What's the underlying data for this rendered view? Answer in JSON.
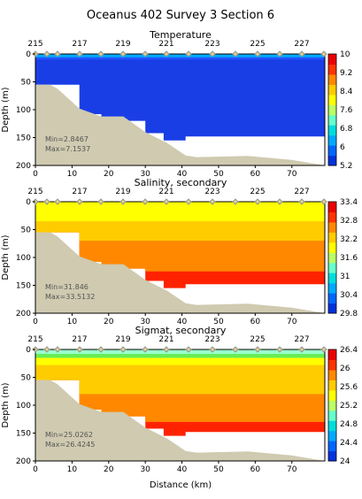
{
  "title": "Oceanus 402 Survey 3 Section 6",
  "xlabel": "Distance (km)",
  "ylabel": "Depth (m)",
  "station_labels": [
    "215",
    "217",
    "219",
    "221",
    "223",
    "225",
    "227"
  ],
  "x_tick_labels": [
    "0",
    "10",
    "20",
    "30",
    "40",
    "50",
    "60",
    "70"
  ],
  "y_tick_labels": [
    "0",
    "50",
    "100",
    "150",
    "200"
  ],
  "chart_data": [
    {
      "type": "heatmap",
      "title": "Temperature",
      "xlim": [
        0,
        79
      ],
      "ylim": [
        200,
        0
      ],
      "stats": {
        "min_label": "Min=2.8467",
        "max_label": "Max=7.1537"
      },
      "colorbar": {
        "tick_labels": [
          "10",
          "9.2",
          "8.4",
          "7.6",
          "6.8",
          "6",
          "5.2"
        ],
        "colors": [
          "#0033dd",
          "#0066ff",
          "#00aaff",
          "#00dddd",
          "#66ffcc",
          "#bbff66",
          "#ffff00",
          "#ffcc00",
          "#ff8800",
          "#ff3300",
          "#ee0000"
        ]
      },
      "layers": [
        {
          "depth_to": 200,
          "color": "#1a3ee6"
        },
        {
          "depth_to": 10,
          "color": "#2255ff"
        },
        {
          "depth_to": 6,
          "color": "#00aaff"
        }
      ]
    },
    {
      "type": "heatmap",
      "title": "Salinity, secondary",
      "xlim": [
        0,
        79
      ],
      "ylim": [
        200,
        0
      ],
      "stats": {
        "min_label": "Min=31.846",
        "max_label": "Max=33.5132"
      },
      "colorbar": {
        "tick_labels": [
          "33.4",
          "32.8",
          "32.2",
          "31.6",
          "31",
          "30.4",
          "29.8"
        ],
        "colors": [
          "#0033dd",
          "#0066ff",
          "#00aaff",
          "#00dddd",
          "#66ffcc",
          "#bbff66",
          "#ffff00",
          "#ffcc00",
          "#ff8800",
          "#ff3300",
          "#ee0000"
        ]
      },
      "layers": [
        {
          "depth_to": 200,
          "color": "#ff2200"
        },
        {
          "depth_to": 125,
          "color": "#ff8800"
        },
        {
          "depth_to": 70,
          "color": "#ffcc00"
        },
        {
          "depth_to": 35,
          "color": "#ffff00"
        }
      ]
    },
    {
      "type": "heatmap",
      "title": "Sigmat, secondary",
      "xlim": [
        0,
        79
      ],
      "ylim": [
        200,
        0
      ],
      "stats": {
        "min_label": "Min=25.0262",
        "max_label": "Max=26.4245"
      },
      "colorbar": {
        "tick_labels": [
          "26.4",
          "26",
          "25.6",
          "25.2",
          "24.8",
          "24.4",
          "24"
        ],
        "colors": [
          "#0033dd",
          "#0066ff",
          "#00aaff",
          "#00dddd",
          "#66ffcc",
          "#bbff66",
          "#ffff00",
          "#ffcc00",
          "#ff8800",
          "#ff3300",
          "#ee0000"
        ]
      },
      "layers": [
        {
          "depth_to": 200,
          "color": "#ff2200"
        },
        {
          "depth_to": 130,
          "color": "#ff8800"
        },
        {
          "depth_to": 80,
          "color": "#ffcc00"
        },
        {
          "depth_to": 28,
          "color": "#ffff00"
        },
        {
          "depth_to": 15,
          "color": "#66ee55"
        },
        {
          "depth_to": 8,
          "color": "#99ffcc"
        }
      ]
    }
  ],
  "seafloor_color": "#cfcab0",
  "station_color": "#e0d890"
}
